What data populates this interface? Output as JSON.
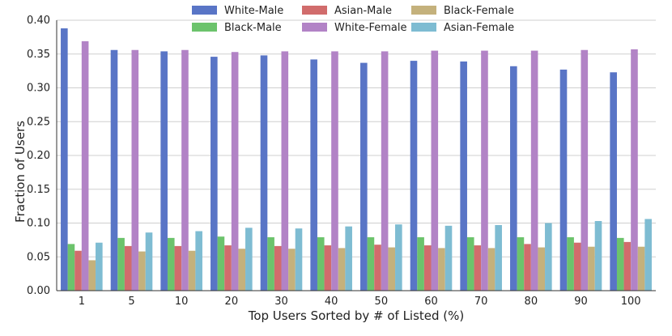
{
  "chart_data": {
    "type": "bar",
    "xlabel": "Top Users Sorted by # of Listed (%)",
    "ylabel": "Fraction of Users",
    "ylim": [
      0,
      0.4
    ],
    "yticks": [
      "0.00",
      "0.05",
      "0.10",
      "0.15",
      "0.20",
      "0.25",
      "0.30",
      "0.35",
      "0.40"
    ],
    "grid": true,
    "legend_position": "top-center",
    "categories": [
      "1",
      "5",
      "10",
      "20",
      "30",
      "40",
      "50",
      "60",
      "70",
      "80",
      "90",
      "100"
    ],
    "series": [
      {
        "name": "White-Male",
        "color": "#5975c6",
        "values": [
          0.388,
          0.356,
          0.354,
          0.346,
          0.348,
          0.342,
          0.337,
          0.34,
          0.339,
          0.332,
          0.327,
          0.323
        ]
      },
      {
        "name": "Black-Male",
        "color": "#6cc36c",
        "values": [
          0.069,
          0.078,
          0.078,
          0.08,
          0.079,
          0.079,
          0.079,
          0.079,
          0.079,
          0.079,
          0.079,
          0.078
        ]
      },
      {
        "name": "Asian-Male",
        "color": "#d16c6c",
        "values": [
          0.059,
          0.066,
          0.066,
          0.067,
          0.066,
          0.067,
          0.068,
          0.067,
          0.067,
          0.069,
          0.071,
          0.072
        ]
      },
      {
        "name": "White-Female",
        "color": "#b283c6",
        "values": [
          0.369,
          0.356,
          0.356,
          0.353,
          0.354,
          0.354,
          0.354,
          0.355,
          0.355,
          0.355,
          0.356,
          0.357
        ]
      },
      {
        "name": "Black-Female",
        "color": "#c4b17c",
        "values": [
          0.045,
          0.058,
          0.059,
          0.062,
          0.062,
          0.063,
          0.064,
          0.063,
          0.063,
          0.064,
          0.065,
          0.065
        ]
      },
      {
        "name": "Asian-Female",
        "color": "#7ebcd2",
        "values": [
          0.071,
          0.086,
          0.088,
          0.093,
          0.092,
          0.095,
          0.098,
          0.096,
          0.097,
          0.1,
          0.103,
          0.106
        ]
      }
    ]
  }
}
